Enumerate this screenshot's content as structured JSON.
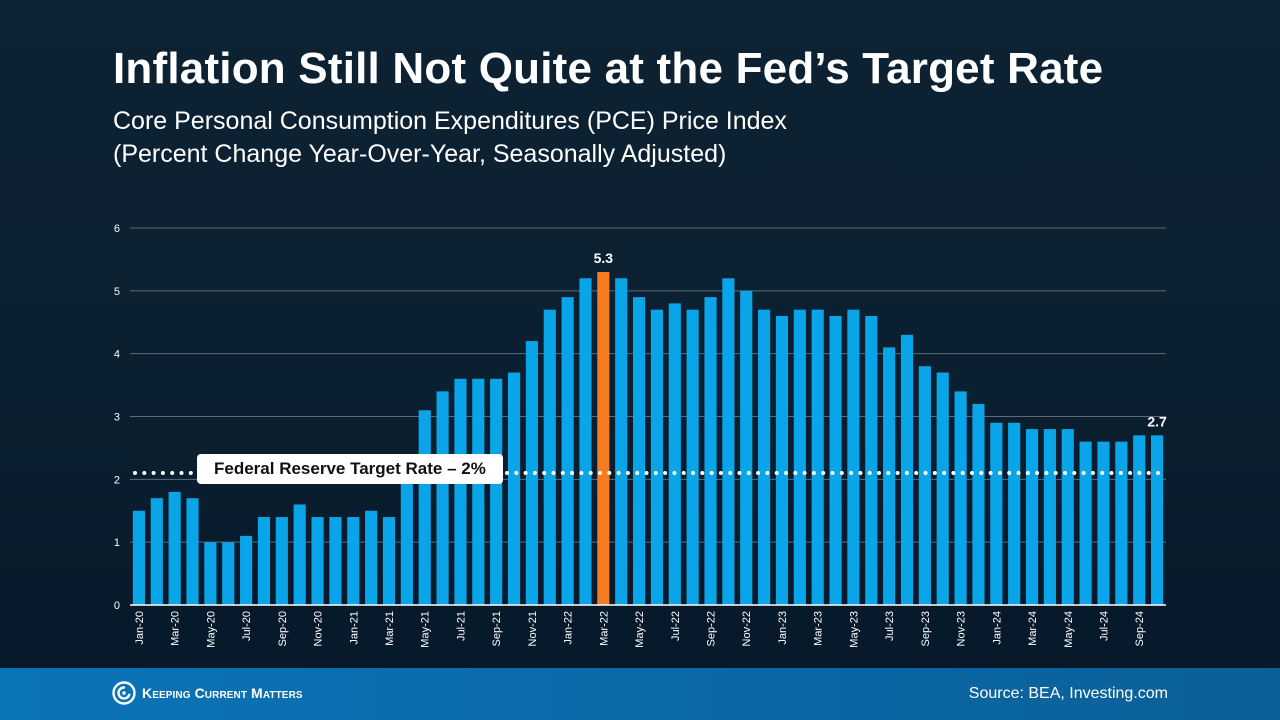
{
  "header": {
    "title": "Inflation Still Not Quite at the Fed’s Target Rate",
    "subtitle_line1": "Core Personal Consumption Expenditures (PCE) Price Index",
    "subtitle_line2": "(Percent Change Year-Over-Year, Seasonally Adjusted)"
  },
  "footer": {
    "brand": "Keeping Current Matters",
    "source": "Source: BEA, Investing.com"
  },
  "colors": {
    "bar": "#0aa5e8",
    "highlight_bar": "#f47b20",
    "gridline": "#5d6b77",
    "axis": "#ffffff",
    "target_line": "#ffffff"
  },
  "chart_data": {
    "type": "bar",
    "title": "Core Personal Consumption Expenditures (PCE) Price Index",
    "ylim": [
      0,
      6
    ],
    "yticks": [
      0,
      1,
      2,
      3,
      4,
      5,
      6
    ],
    "grid": true,
    "categories": [
      "Jan-20",
      "Feb-20",
      "Mar-20",
      "Apr-20",
      "May-20",
      "Jun-20",
      "Jul-20",
      "Aug-20",
      "Sep-20",
      "Oct-20",
      "Nov-20",
      "Dec-20",
      "Jan-21",
      "Feb-21",
      "Mar-21",
      "Apr-21",
      "May-21",
      "Jun-21",
      "Jul-21",
      "Aug-21",
      "Sep-21",
      "Oct-21",
      "Nov-21",
      "Dec-21",
      "Jan-22",
      "Feb-22",
      "Mar-22",
      "Apr-22",
      "May-22",
      "Jun-22",
      "Jul-22",
      "Aug-22",
      "Sep-22",
      "Oct-22",
      "Nov-22",
      "Dec-22",
      "Jan-23",
      "Feb-23",
      "Mar-23",
      "Apr-23",
      "May-23",
      "Jun-23",
      "Jul-23",
      "Aug-23",
      "Sep-23",
      "Oct-23",
      "Nov-23",
      "Dec-23",
      "Jan-24",
      "Feb-24",
      "Mar-24",
      "Apr-24",
      "May-24",
      "Jun-24",
      "Jul-24",
      "Aug-24",
      "Sep-24",
      "Oct-24"
    ],
    "tick_labels": [
      "Jan-20",
      "Mar-20",
      "May-20",
      "Jul-20",
      "Sep-20",
      "Nov-20",
      "Jan-21",
      "Mar-21",
      "May-21",
      "Jul-21",
      "Sep-21",
      "Nov-21",
      "Jan-22",
      "Mar-22",
      "May-22",
      "Jul-22",
      "Sep-22",
      "Nov-22",
      "Jan-23",
      "Mar-23",
      "May-23",
      "Jul-23",
      "Sep-23",
      "Nov-23",
      "Jan-24",
      "Mar-24",
      "May-24",
      "Jul-24",
      "Sep-24"
    ],
    "values": [
      1.5,
      1.7,
      1.8,
      1.7,
      1.0,
      1.0,
      1.1,
      1.4,
      1.4,
      1.6,
      1.4,
      1.4,
      1.4,
      1.5,
      1.4,
      2.0,
      3.1,
      3.4,
      3.6,
      3.6,
      3.6,
      3.7,
      4.2,
      4.7,
      4.9,
      5.2,
      5.3,
      5.2,
      4.9,
      4.7,
      4.8,
      4.7,
      4.9,
      5.2,
      5.0,
      4.7,
      4.6,
      4.7,
      4.7,
      4.6,
      4.7,
      4.6,
      4.1,
      4.3,
      3.8,
      3.7,
      3.4,
      3.2,
      2.9,
      2.9,
      2.8,
      2.8,
      2.8,
      2.6,
      2.6,
      2.6,
      2.7,
      2.7
    ],
    "highlight_category": "Mar-22",
    "data_labels": [
      {
        "category": "Mar-22",
        "text": "5.3"
      },
      {
        "category": "Oct-24",
        "text": "2.7"
      }
    ],
    "reference_line": {
      "value": 2.1,
      "style": "dotted",
      "label": "Federal Reserve Target Rate – 2%"
    }
  }
}
